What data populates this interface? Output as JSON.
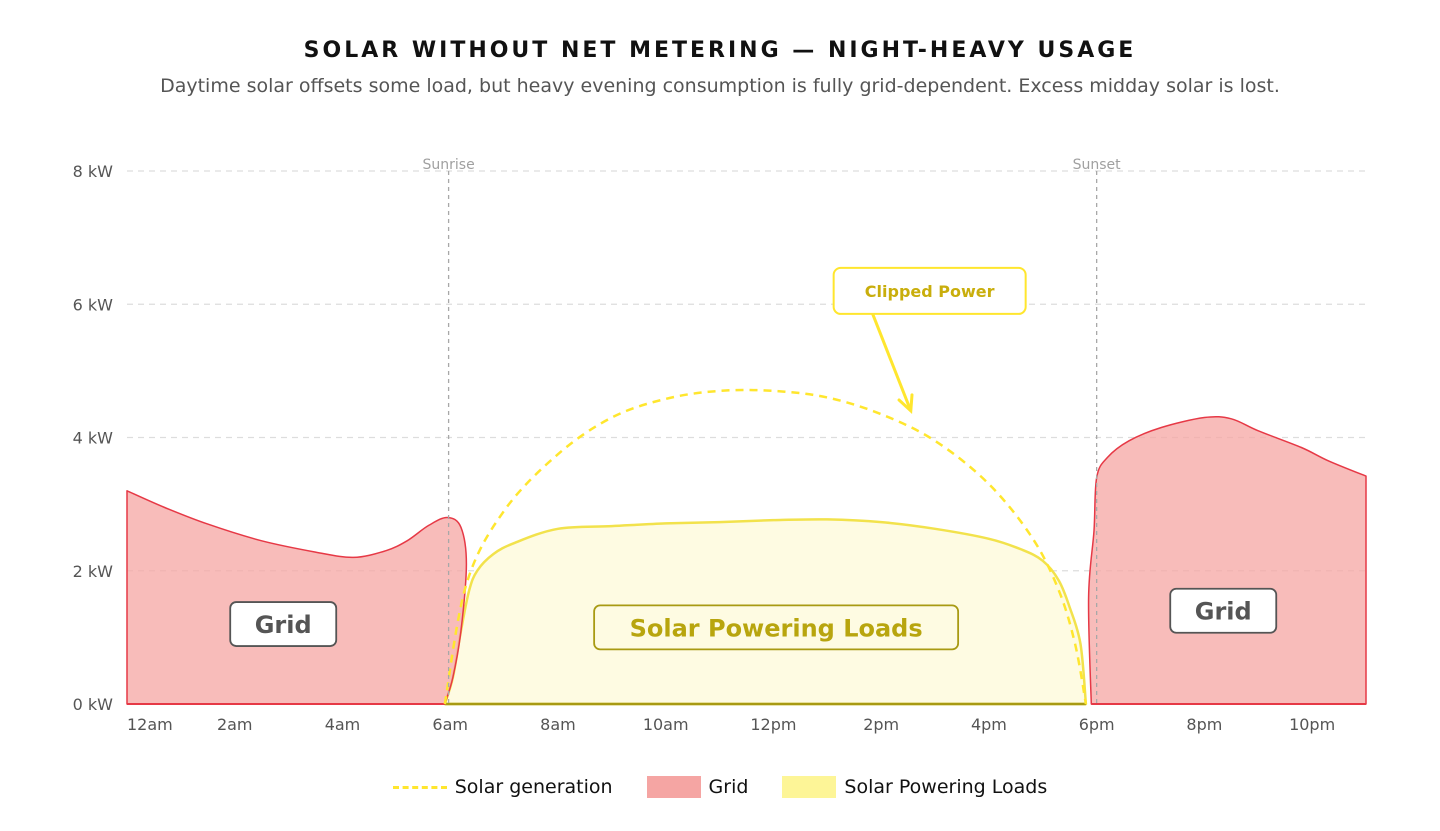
{
  "title": "SOLAR WITHOUT NET METERING — NIGHT-HEAVY USAGE",
  "subtitle": "Daytime solar offsets some load, but heavy evening consumption is fully grid-dependent. Excess midday solar is lost.",
  "chart_data": {
    "type": "area",
    "x_unit": "hour",
    "xlim": [
      0,
      23
    ],
    "ylim": [
      0,
      8
    ],
    "y_ticks": [
      {
        "value": 0,
        "label": "0 kW"
      },
      {
        "value": 2,
        "label": "2 kW"
      },
      {
        "value": 4,
        "label": "4 kW"
      },
      {
        "value": 6,
        "label": "6 kW"
      },
      {
        "value": 8,
        "label": "8 kW"
      }
    ],
    "x_ticks": [
      {
        "value": 0,
        "label": "12am"
      },
      {
        "value": 2,
        "label": "2am"
      },
      {
        "value": 4,
        "label": "4am"
      },
      {
        "value": 6,
        "label": "6am"
      },
      {
        "value": 8,
        "label": "8am"
      },
      {
        "value": 10,
        "label": "10am"
      },
      {
        "value": 12,
        "label": "12pm"
      },
      {
        "value": 14,
        "label": "2pm"
      },
      {
        "value": 16,
        "label": "4pm"
      },
      {
        "value": 18,
        "label": "6pm"
      },
      {
        "value": 20,
        "label": "8pm"
      },
      {
        "value": 22,
        "label": "10pm"
      }
    ],
    "grid": true,
    "markers": [
      {
        "x": 5.97,
        "label": "Sunrise"
      },
      {
        "x": 18.0,
        "label": "Sunset"
      }
    ],
    "series": [
      {
        "name": "Solar generation",
        "style": "dashed-line",
        "color": "#FFE62E",
        "points": [
          [
            5.9,
            0
          ],
          [
            6.3,
            1.8
          ],
          [
            7.0,
            2.9
          ],
          [
            8.0,
            3.75
          ],
          [
            9.0,
            4.3
          ],
          [
            10.0,
            4.58
          ],
          [
            11.0,
            4.7
          ],
          [
            12.0,
            4.7
          ],
          [
            13.0,
            4.6
          ],
          [
            14.0,
            4.35
          ],
          [
            15.0,
            3.95
          ],
          [
            16.0,
            3.3
          ],
          [
            16.8,
            2.5
          ],
          [
            17.3,
            1.7
          ],
          [
            17.6,
            0.9
          ],
          [
            17.8,
            0
          ]
        ]
      },
      {
        "name": "Grid",
        "style": "area",
        "color": "#E63946",
        "fill": "#F5A5A3",
        "segments": [
          [
            [
              0,
              3.2
            ],
            [
              0.7,
              2.95
            ],
            [
              1.5,
              2.7
            ],
            [
              2.5,
              2.45
            ],
            [
              3.5,
              2.28
            ],
            [
              4.2,
              2.2
            ],
            [
              4.8,
              2.3
            ],
            [
              5.2,
              2.45
            ],
            [
              5.6,
              2.68
            ],
            [
              5.95,
              2.8
            ],
            [
              6.2,
              2.65
            ],
            [
              6.3,
              2.1
            ],
            [
              6.2,
              1.1
            ],
            [
              6.05,
              0.4
            ],
            [
              5.9,
              0
            ]
          ],
          [
            [
              17.9,
              0
            ],
            [
              17.85,
              1.6
            ],
            [
              17.95,
              2.6
            ],
            [
              18.0,
              3.4
            ],
            [
              18.2,
              3.7
            ],
            [
              18.6,
              3.95
            ],
            [
              19.2,
              4.15
            ],
            [
              20.0,
              4.3
            ],
            [
              20.5,
              4.28
            ],
            [
              21.0,
              4.1
            ],
            [
              21.8,
              3.85
            ],
            [
              22.3,
              3.65
            ],
            [
              23.0,
              3.42
            ]
          ]
        ]
      },
      {
        "name": "Solar Powering Loads",
        "style": "area",
        "color": "#F2E24C",
        "fill": "#FEFBE2",
        "points": [
          [
            5.9,
            0
          ],
          [
            6.05,
            0.4
          ],
          [
            6.2,
            1.1
          ],
          [
            6.35,
            1.7
          ],
          [
            6.5,
            2.0
          ],
          [
            6.8,
            2.25
          ],
          [
            7.2,
            2.42
          ],
          [
            8.0,
            2.63
          ],
          [
            9.0,
            2.67
          ],
          [
            10.0,
            2.71
          ],
          [
            11.0,
            2.73
          ],
          [
            12.0,
            2.76
          ],
          [
            13.0,
            2.77
          ],
          [
            14.0,
            2.73
          ],
          [
            15.0,
            2.63
          ],
          [
            16.0,
            2.48
          ],
          [
            16.6,
            2.32
          ],
          [
            17.0,
            2.15
          ],
          [
            17.3,
            1.85
          ],
          [
            17.5,
            1.45
          ],
          [
            17.7,
            0.9
          ],
          [
            17.8,
            0
          ]
        ]
      }
    ],
    "annotations": [
      {
        "text": "Clipped Power",
        "x": 14.9,
        "y": 6.2,
        "arrow_to": [
          14.55,
          4.4
        ]
      }
    ],
    "area_labels": [
      {
        "text": "Grid",
        "x": 2.9,
        "y": 1.2
      },
      {
        "text": "Solar Powering Loads",
        "x": 12.05,
        "y": 1.15
      },
      {
        "text": "Grid",
        "x": 20.35,
        "y": 1.4
      }
    ]
  },
  "legend": [
    {
      "label": "Solar generation",
      "kind": "dashed-line"
    },
    {
      "label": "Grid",
      "kind": "grid-area"
    },
    {
      "label": "Solar Powering Loads",
      "kind": "solar-area"
    }
  ]
}
